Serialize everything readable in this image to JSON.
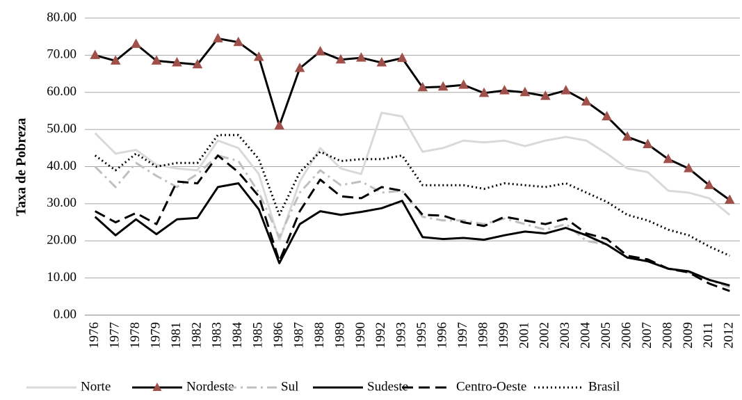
{
  "chart_data": {
    "type": "line",
    "y_label": "Taxa de Pobreza",
    "categories": [
      "1976",
      "1977",
      "1978",
      "1979",
      "1981",
      "1982",
      "1983",
      "1984",
      "1985",
      "1986",
      "1987",
      "1988",
      "1989",
      "1990",
      "1992",
      "1993",
      "1995",
      "1996",
      "1997",
      "1998",
      "1999",
      "2001",
      "2002",
      "2003",
      "2004",
      "2005",
      "2006",
      "2007",
      "2008",
      "2009",
      "2011",
      "2012"
    ],
    "ylim": [
      0,
      80
    ],
    "yticks": [
      {
        "value": 0,
        "label": "0.00"
      },
      {
        "value": 10,
        "label": "10.00"
      },
      {
        "value": 20,
        "label": "20.00"
      },
      {
        "value": 30,
        "label": "30.00"
      },
      {
        "value": 40,
        "label": "40.00"
      },
      {
        "value": 50,
        "label": "50.00"
      },
      {
        "value": 60,
        "label": "60.00"
      },
      {
        "value": 70,
        "label": "70.00"
      },
      {
        "value": 80,
        "label": "80.00"
      }
    ],
    "grid": true,
    "legend": "bottom",
    "series": [
      {
        "name": "Norte",
        "color": "#d9d9d9",
        "line_style": "solid",
        "values": [
          49,
          43.5,
          44.5,
          40.5,
          39.5,
          39,
          47,
          45,
          38,
          20,
          36,
          45,
          39.5,
          38,
          54.5,
          53.5,
          44,
          45,
          47,
          46.5,
          47,
          45.5,
          47,
          48,
          47,
          43.5,
          39.5,
          38.5,
          33.5,
          33,
          31.5,
          27
        ]
      },
      {
        "name": "Nordeste",
        "color": "#000000",
        "marker": "triangle",
        "marker_color": "#a0504a",
        "line_style": "solid",
        "values": [
          70,
          68.5,
          73,
          68.5,
          68,
          67.5,
          74.5,
          73.5,
          69.5,
          51,
          66.5,
          71,
          68.8,
          69.3,
          68,
          69.2,
          61.3,
          61.5,
          62,
          59.8,
          60.5,
          60,
          59,
          60.5,
          57.5,
          53.5,
          48,
          46,
          42,
          39.5,
          35,
          31
        ]
      },
      {
        "name": "Sul",
        "color": "#bfbfbf",
        "line_style": "dashdot",
        "values": [
          40,
          34.5,
          41,
          37.5,
          34.5,
          38,
          43,
          41.5,
          33,
          21,
          33,
          39,
          35,
          36,
          33,
          33.5,
          26.5,
          25.5,
          25.5,
          24.5,
          26,
          24.5,
          23,
          24.5,
          20,
          19,
          15.5,
          14.5,
          12.5,
          11.5,
          9.5,
          7.5
        ]
      },
      {
        "name": "Sudeste",
        "color": "#000000",
        "line_style": "solid",
        "values": [
          26.5,
          21.5,
          25.8,
          21.8,
          25.8,
          26.2,
          34.5,
          35.5,
          28.5,
          14,
          24.5,
          28,
          27,
          27.8,
          28.8,
          30.8,
          21,
          20.5,
          20.8,
          20.3,
          21.5,
          22.5,
          22,
          23.5,
          21.5,
          19,
          15.5,
          14.5,
          12.5,
          11.8,
          9.5,
          8
        ]
      },
      {
        "name": "Centro-Oeste",
        "color": "#000000",
        "line_style": "dashed",
        "values": [
          28,
          25,
          27.5,
          24.5,
          36,
          35.5,
          43,
          38.5,
          32,
          14.5,
          28,
          36.5,
          32,
          31.5,
          34.5,
          33.5,
          27,
          26.8,
          25,
          24,
          26.5,
          25.5,
          24.5,
          26,
          22,
          20.5,
          16,
          15,
          12.5,
          11.5,
          8.5,
          6.5
        ]
      },
      {
        "name": "Brasil",
        "color": "#000000",
        "line_style": "dotted",
        "values": [
          43,
          39,
          43.5,
          40,
          41,
          41,
          48.5,
          48.5,
          42,
          27,
          38.5,
          44,
          41.5,
          42,
          42,
          43,
          35,
          35,
          35,
          34,
          35.5,
          35,
          34.5,
          35.5,
          33,
          30.5,
          27,
          25.5,
          23,
          21.5,
          18.5,
          16
        ]
      }
    ]
  }
}
